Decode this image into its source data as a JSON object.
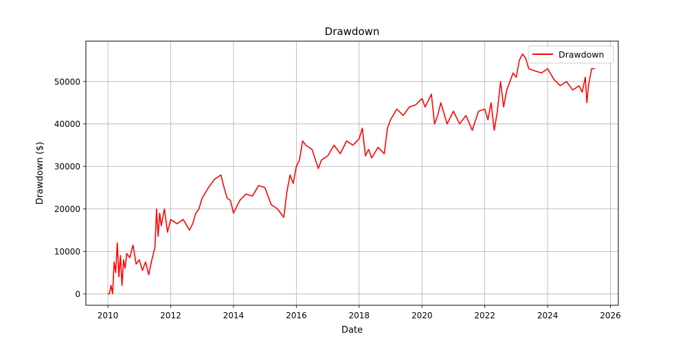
{
  "chart_data": {
    "type": "line",
    "title": "Drawdown",
    "xlabel": "Date",
    "ylabel": "Drawdown ($)",
    "xlim": [
      2009.3,
      2026.25
    ],
    "ylim": [
      -2700,
      59500
    ],
    "x_ticks": [
      2010,
      2012,
      2014,
      2016,
      2018,
      2020,
      2022,
      2024,
      2026
    ],
    "x_tick_labels": [
      "2010",
      "2012",
      "2014",
      "2016",
      "2018",
      "2020",
      "2022",
      "2024",
      "2026"
    ],
    "y_ticks": [
      0,
      10000,
      20000,
      30000,
      40000,
      50000
    ],
    "y_tick_labels": [
      "0",
      "10000",
      "20000",
      "30000",
      "40000",
      "50000"
    ],
    "grid": true,
    "legend_position": "top-right",
    "line_color": "#ff0000",
    "series": [
      {
        "name": "Drawdown",
        "x": [
          2010.0,
          2010.05,
          2010.1,
          2010.15,
          2010.2,
          2010.25,
          2010.3,
          2010.35,
          2010.4,
          2010.45,
          2010.5,
          2010.55,
          2010.6,
          2010.7,
          2010.8,
          2010.9,
          2011.0,
          2011.1,
          2011.2,
          2011.3,
          2011.4,
          2011.5,
          2011.55,
          2011.6,
          2011.65,
          2011.7,
          2011.8,
          2011.9,
          2012.0,
          2012.2,
          2012.4,
          2012.6,
          2012.7,
          2012.8,
          2012.9,
          2013.0,
          2013.2,
          2013.4,
          2013.6,
          2013.7,
          2013.8,
          2013.9,
          2014.0,
          2014.2,
          2014.4,
          2014.6,
          2014.8,
          2015.0,
          2015.2,
          2015.4,
          2015.6,
          2015.7,
          2015.8,
          2015.9,
          2016.0,
          2016.1,
          2016.2,
          2016.3,
          2016.5,
          2016.7,
          2016.8,
          2017.0,
          2017.2,
          2017.4,
          2017.6,
          2017.8,
          2018.0,
          2018.1,
          2018.2,
          2018.3,
          2018.4,
          2018.6,
          2018.8,
          2018.9,
          2019.0,
          2019.2,
          2019.4,
          2019.6,
          2019.8,
          2020.0,
          2020.1,
          2020.2,
          2020.3,
          2020.4,
          2020.5,
          2020.6,
          2020.8,
          2021.0,
          2021.2,
          2021.4,
          2021.6,
          2021.8,
          2022.0,
          2022.1,
          2022.2,
          2022.3,
          2022.4,
          2022.5,
          2022.6,
          2022.7,
          2022.8,
          2022.9,
          2023.0,
          2023.1,
          2023.2,
          2023.3,
          2023.4,
          2023.6,
          2023.8,
          2024.0,
          2024.2,
          2024.4,
          2024.6,
          2024.8,
          2025.0,
          2025.1,
          2025.2,
          2025.25,
          2025.3,
          2025.4,
          2025.5
        ],
        "values": [
          0,
          0,
          2000,
          0,
          7500,
          5000,
          12000,
          4000,
          9000,
          2000,
          8000,
          6000,
          9500,
          8500,
          11500,
          7000,
          8000,
          5500,
          7500,
          4500,
          8000,
          11000,
          20000,
          13500,
          19000,
          16000,
          20000,
          14500,
          17500,
          16500,
          17500,
          15000,
          16500,
          19000,
          20000,
          22500,
          25000,
          27000,
          28000,
          25000,
          22500,
          22000,
          19000,
          22000,
          23500,
          23000,
          25500,
          25000,
          21000,
          20000,
          18000,
          24000,
          28000,
          26000,
          30000,
          31500,
          36000,
          35000,
          34000,
          29500,
          31500,
          32500,
          35000,
          33000,
          36000,
          35000,
          36500,
          39000,
          32500,
          34000,
          32000,
          34500,
          33000,
          39000,
          41000,
          43500,
          42000,
          44000,
          44500,
          46000,
          44000,
          45500,
          47000,
          40000,
          42000,
          45000,
          40000,
          43000,
          40000,
          42000,
          38500,
          43000,
          43500,
          41000,
          45000,
          38500,
          43000,
          50000,
          44000,
          48000,
          50000,
          52000,
          51000,
          55000,
          56500,
          55500,
          53000,
          52500,
          52000,
          53000,
          50500,
          49000,
          50000,
          48000,
          49000,
          47500,
          51000,
          45000,
          49000,
          53000,
          53000
        ]
      }
    ]
  }
}
